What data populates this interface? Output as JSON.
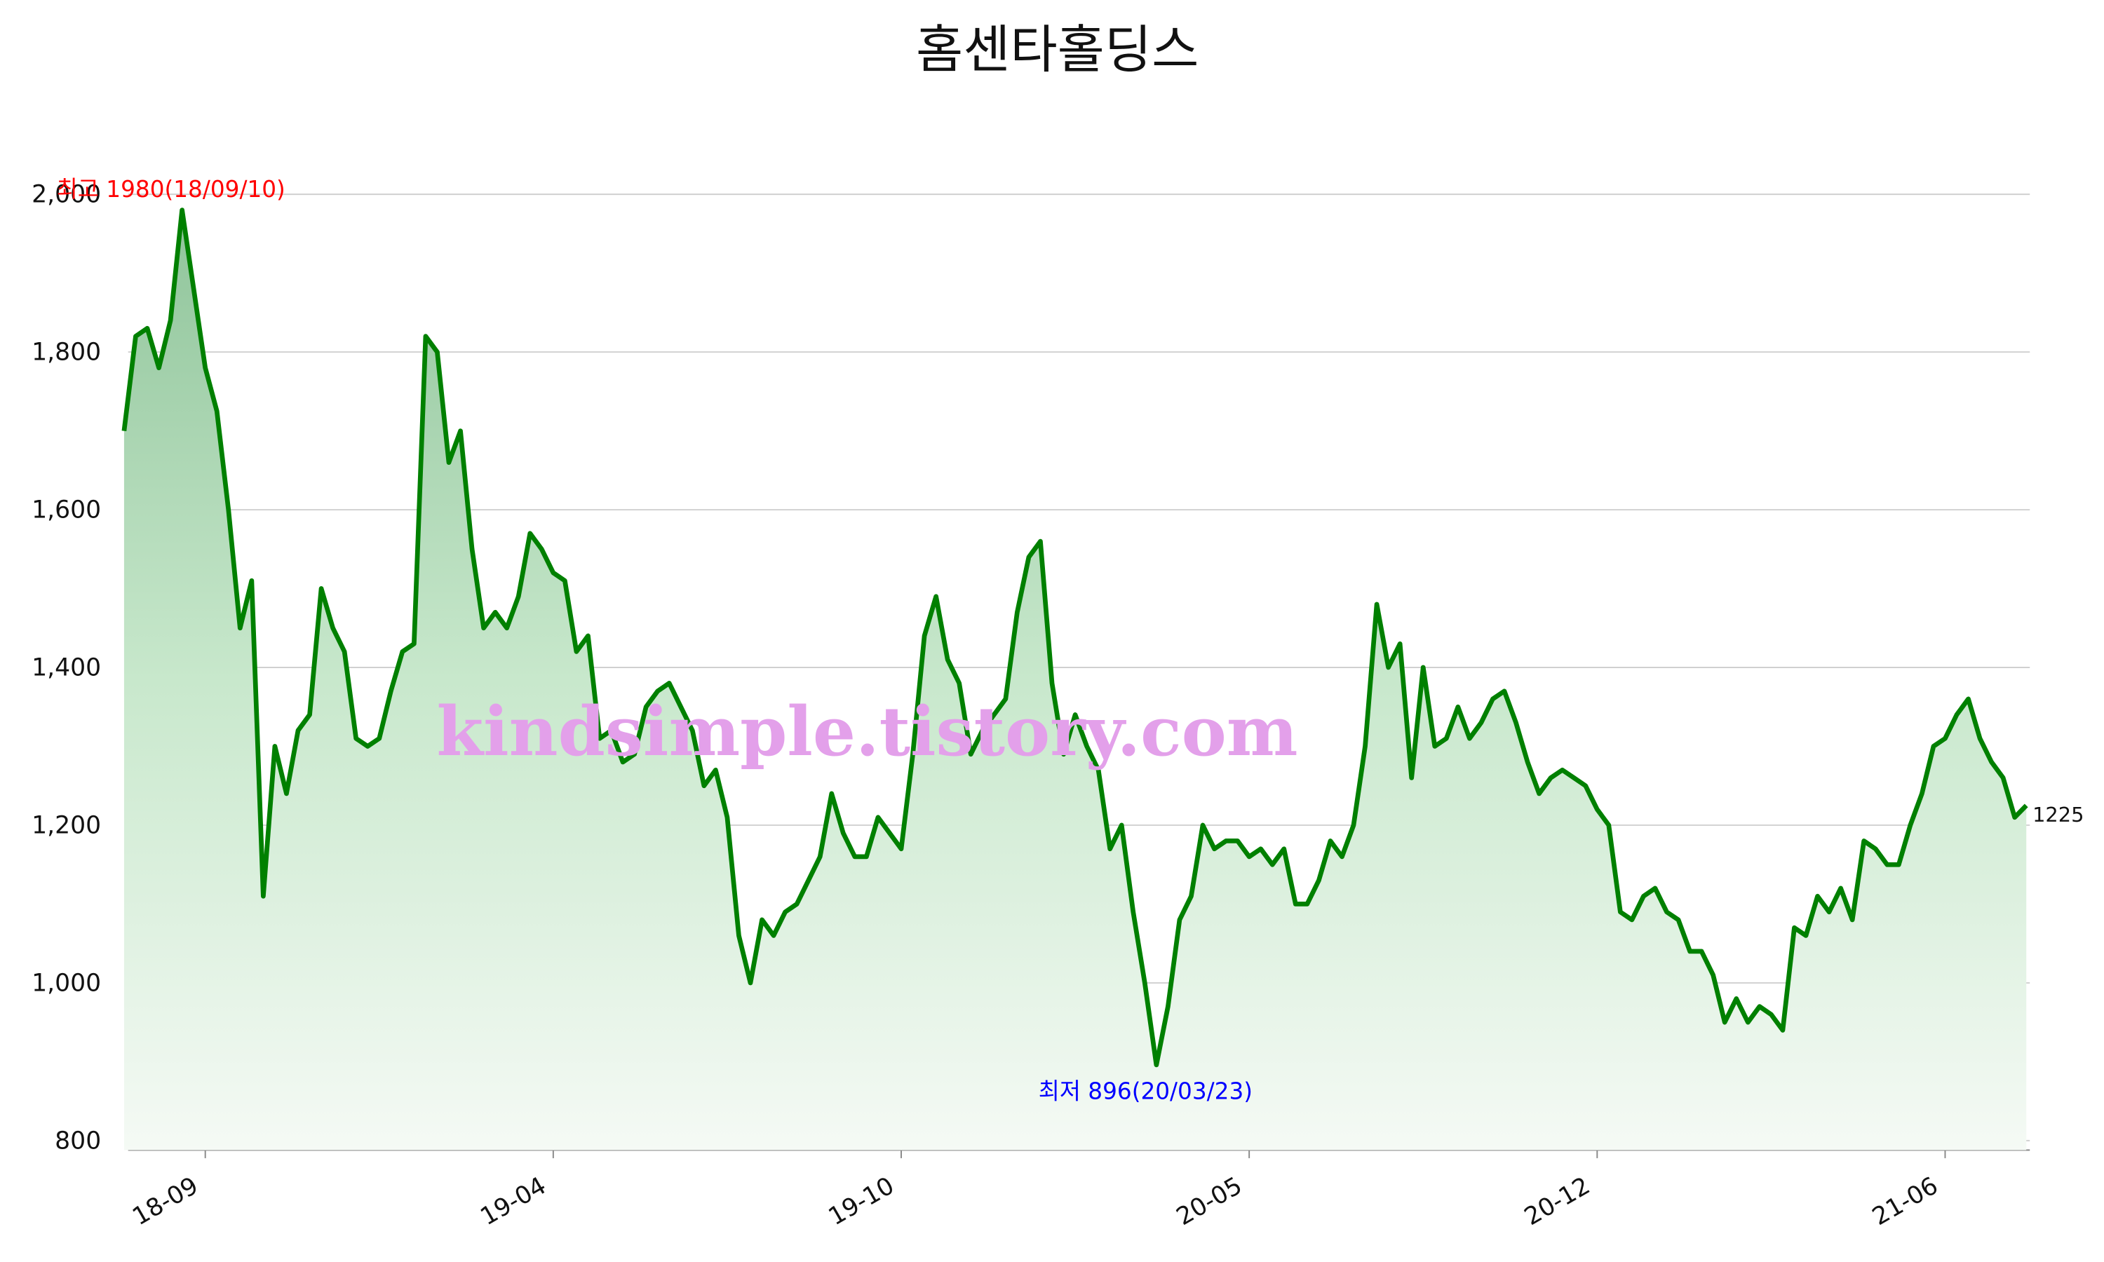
{
  "chart_data": {
    "type": "line",
    "title": "홈센타홀딩스",
    "watermark": "kindsimple.tistory.com",
    "color": "#008000",
    "grid": true,
    "annotations": [
      {
        "text": "최고 1980(18/09/10)",
        "color": "#ff0000"
      },
      {
        "text": "최저 896(20/03/23)",
        "color": "#0000ff"
      }
    ],
    "categories": [
      null,
      null,
      null,
      null,
      null,
      null,
      null,
      "18-09",
      null,
      null,
      null,
      null,
      null,
      null,
      null,
      null,
      null,
      null,
      null,
      null,
      null,
      null,
      null,
      null,
      null,
      null,
      null,
      null,
      null,
      null,
      null,
      null,
      null,
      null,
      null,
      null,
      null,
      "19-04",
      null,
      null,
      null,
      null,
      null,
      null,
      null,
      null,
      null,
      null,
      null,
      null,
      null,
      null,
      null,
      null,
      null,
      null,
      null,
      null,
      null,
      null,
      null,
      null,
      null,
      null,
      null,
      null,
      null,
      "19-10",
      null,
      null,
      null,
      null,
      null,
      null,
      null,
      null,
      null,
      null,
      null,
      null,
      null,
      null,
      null,
      null,
      null,
      null,
      null,
      null,
      null,
      null,
      null,
      null,
      null,
      null,
      null,
      null,
      null,
      "20-05",
      null,
      null,
      null,
      null,
      null,
      null,
      null,
      null,
      null,
      null,
      null,
      null,
      null,
      null,
      null,
      null,
      null,
      null,
      null,
      null,
      null,
      null,
      null,
      null,
      null,
      null,
      null,
      null,
      null,
      "20-12",
      null,
      null,
      null,
      null,
      null,
      null,
      null,
      null,
      null,
      null,
      null,
      null,
      null,
      null,
      null,
      null,
      null,
      null,
      null,
      null,
      null,
      null,
      null,
      null,
      null,
      null,
      null,
      null,
      null,
      "21-06",
      null,
      null,
      null,
      null,
      null,
      null,
      null
    ],
    "values": [
      1700,
      1820,
      1830,
      1780,
      1840,
      1980,
      1880,
      1780,
      1725,
      1600,
      1450,
      1510,
      1110,
      1300,
      1240,
      1320,
      1340,
      1500,
      1450,
      1420,
      1310,
      1300,
      1310,
      1370,
      1420,
      1430,
      1820,
      1800,
      1660,
      1700,
      1550,
      1450,
      1470,
      1450,
      1490,
      1570,
      1550,
      1520,
      1510,
      1420,
      1440,
      1310,
      1320,
      1280,
      1290,
      1350,
      1370,
      1380,
      1350,
      1320,
      1250,
      1270,
      1210,
      1060,
      1000,
      1080,
      1060,
      1090,
      1100,
      1130,
      1160,
      1240,
      1190,
      1160,
      1160,
      1210,
      1190,
      1170,
      1290,
      1440,
      1490,
      1410,
      1380,
      1290,
      1320,
      1340,
      1360,
      1470,
      1540,
      1560,
      1380,
      1290,
      1340,
      1300,
      1270,
      1170,
      1200,
      1090,
      1000,
      896,
      970,
      1080,
      1110,
      1200,
      1170,
      1180,
      1180,
      1160,
      1170,
      1150,
      1170,
      1100,
      1100,
      1130,
      1180,
      1160,
      1200,
      1300,
      1480,
      1400,
      1430,
      1260,
      1400,
      1300,
      1310,
      1350,
      1310,
      1330,
      1360,
      1370,
      1330,
      1280,
      1240,
      1260,
      1270,
      1260,
      1250,
      1220,
      1200,
      1090,
      1080,
      1110,
      1120,
      1090,
      1080,
      1040,
      1040,
      1010,
      950,
      980,
      950,
      970,
      960,
      940,
      1070,
      1060,
      1110,
      1090,
      1120,
      1080,
      1180,
      1170,
      1150,
      1150,
      1200,
      1240,
      1300,
      1310,
      1340,
      1360,
      1310,
      1280,
      1260,
      1210,
      1225
    ],
    "ylim": [
      788,
      2060
    ],
    "yticks": [
      800,
      {
        "value": 1000,
        "label": "1,000"
      },
      {
        "value": 1200,
        "label": "1,200"
      },
      {
        "value": 1400,
        "label": "1,400"
      },
      {
        "value": 1600,
        "label": "1,600"
      },
      {
        "value": 1800,
        "label": "1,800"
      },
      {
        "value": 2000,
        "label": "2,000"
      }
    ]
  }
}
